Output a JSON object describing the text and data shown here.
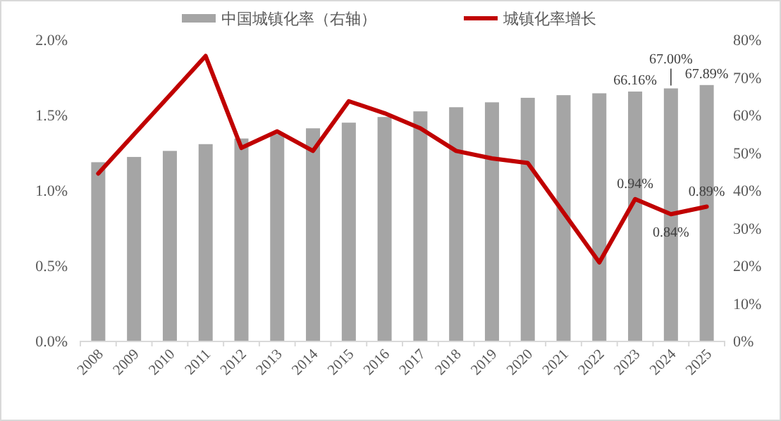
{
  "chart_data": {
    "type": "bar",
    "legend": "top",
    "categories": [
      "2008",
      "2009",
      "2010",
      "2011",
      "2012",
      "2013",
      "2014",
      "2015",
      "2016",
      "2017",
      "2018",
      "2019",
      "2020",
      "2021",
      "2022",
      "2023",
      "2024",
      "2025"
    ],
    "series": [
      {
        "name": "中国城镇化率（右轴）",
        "axis": "y2",
        "color": "#a5a5a5",
        "values": [
          47.4,
          48.8,
          50.4,
          52.2,
          53.7,
          54.9,
          56.4,
          57.9,
          59.4,
          60.9,
          62.0,
          63.3,
          64.5,
          65.2,
          65.7,
          66.16,
          67.0,
          67.89
        ],
        "value_labels": [
          null,
          null,
          null,
          null,
          null,
          null,
          null,
          null,
          null,
          null,
          null,
          null,
          null,
          null,
          null,
          "66.16%",
          "67.00%",
          "67.89%"
        ]
      },
      {
        "name": "城镇化率增长",
        "type": "line",
        "color": "#c00000",
        "values": [
          1.11,
          1.37,
          1.63,
          1.89,
          1.28,
          1.39,
          1.26,
          1.59,
          1.51,
          1.41,
          1.26,
          1.21,
          1.18,
          0.85,
          0.52,
          0.94,
          0.84,
          0.89
        ],
        "value_labels": [
          null,
          null,
          null,
          null,
          null,
          null,
          null,
          null,
          null,
          null,
          null,
          null,
          null,
          null,
          null,
          "0.94%",
          "0.84%",
          "0.89%"
        ]
      }
    ],
    "ylim": [
      0,
      2.0
    ],
    "yticks": [
      {
        "value": 0,
        "label": "0.0%"
      },
      {
        "value": 0.5,
        "label": "0.5%"
      },
      {
        "value": 1.0,
        "label": "1.0%"
      },
      {
        "value": 1.5,
        "label": "1.5%"
      },
      {
        "value": 2.0,
        "label": "2.0%"
      }
    ],
    "y2lim": [
      0,
      80
    ],
    "y2ticks": [
      {
        "value": 0,
        "label": "0%"
      },
      {
        "value": 10,
        "label": "10%"
      },
      {
        "value": 20,
        "label": "20%"
      },
      {
        "value": 30,
        "label": "30%"
      },
      {
        "value": 40,
        "label": "40%"
      },
      {
        "value": 50,
        "label": "50%"
      },
      {
        "value": 60,
        "label": "60%"
      },
      {
        "value": 70,
        "label": "70%"
      },
      {
        "value": 80,
        "label": "80%"
      }
    ]
  }
}
